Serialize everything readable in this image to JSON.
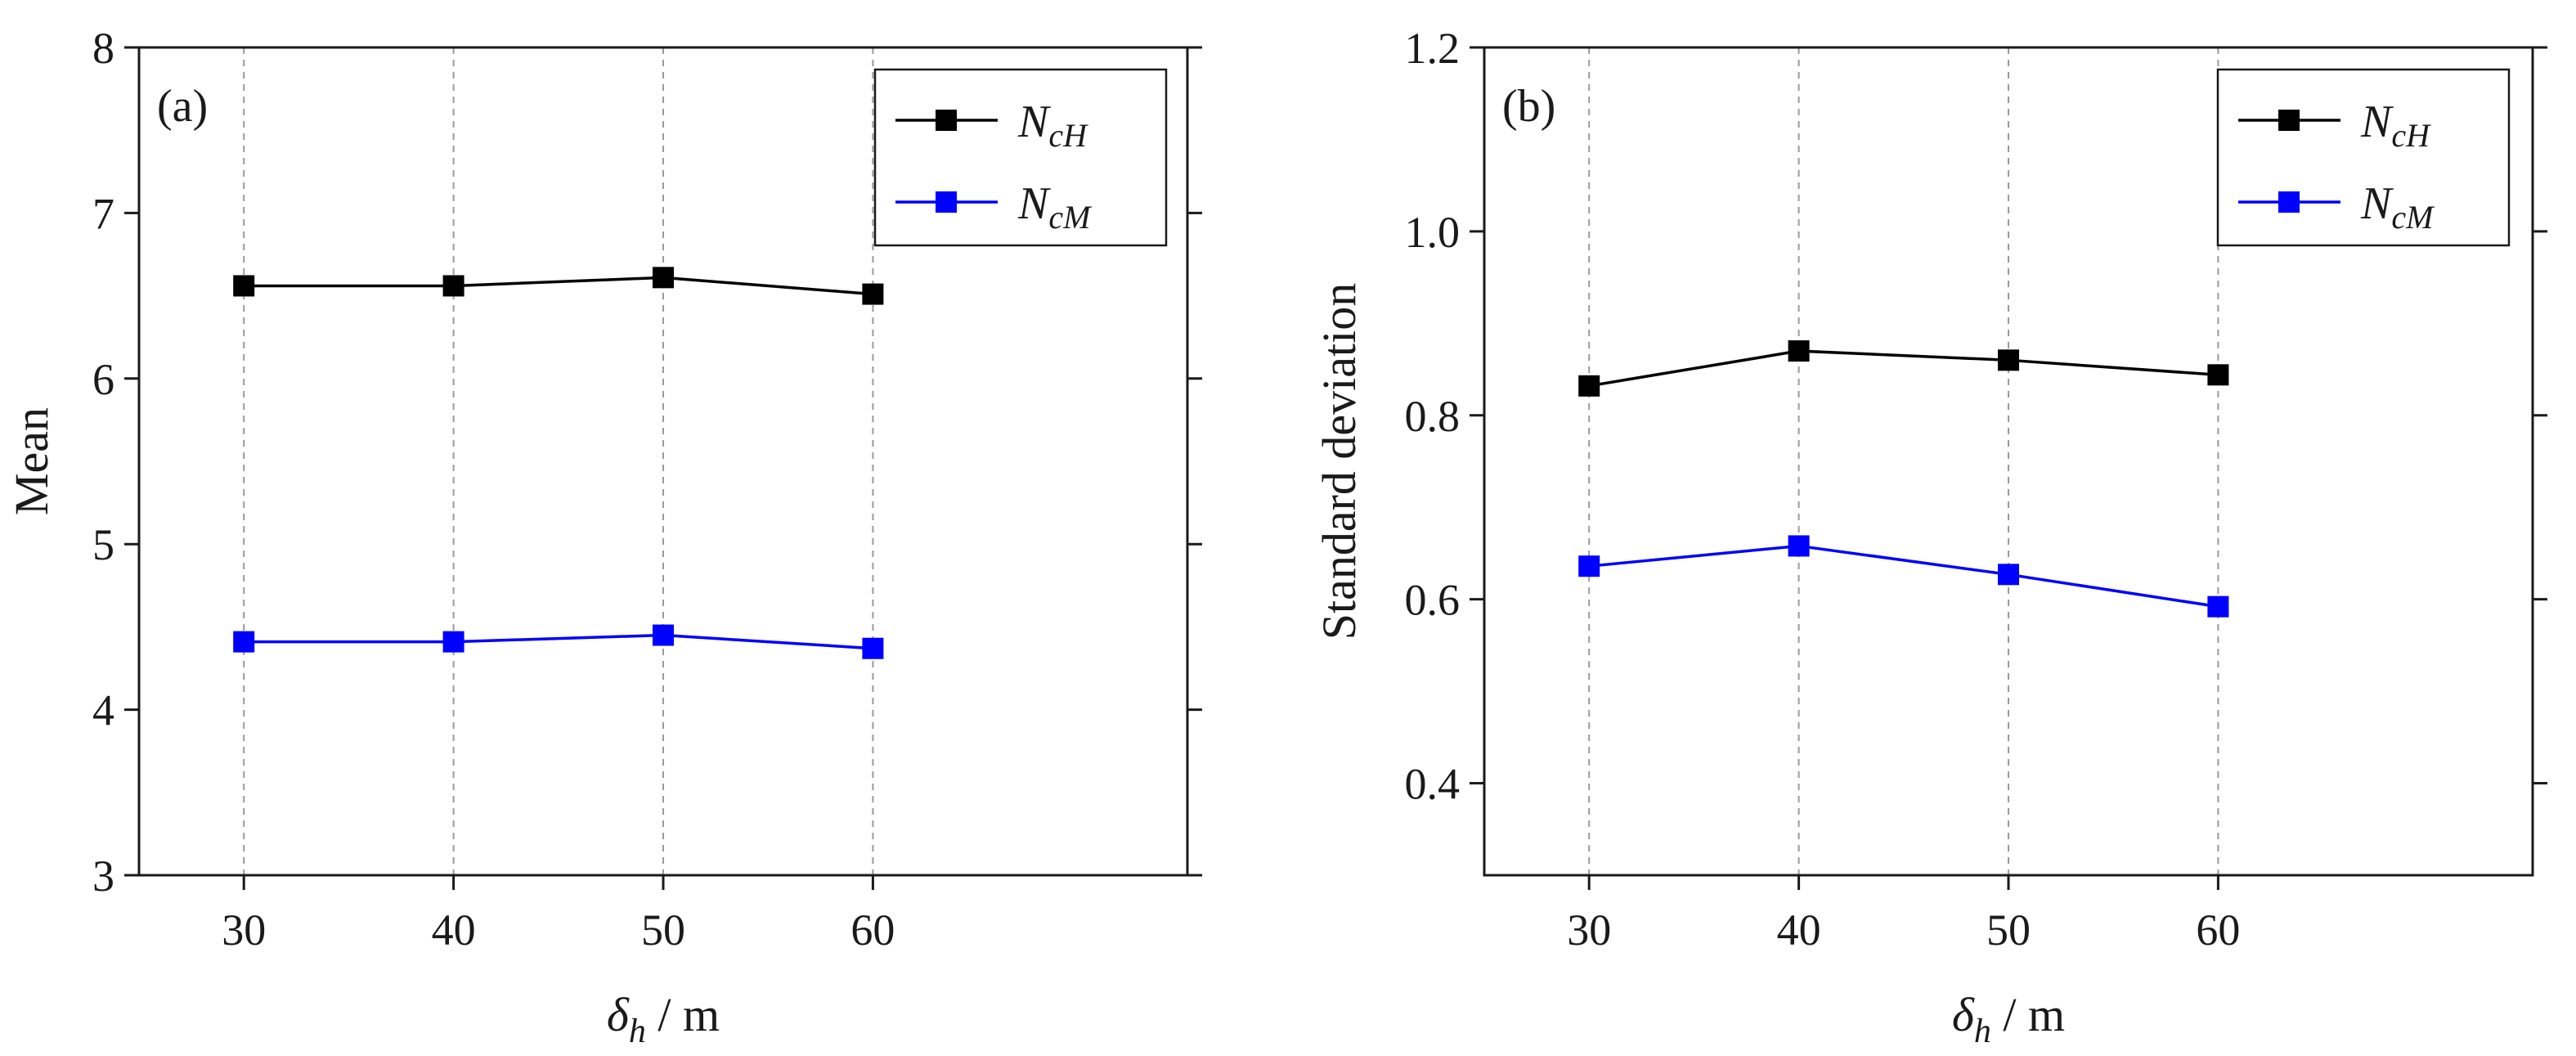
{
  "chart_data": [
    {
      "type": "line",
      "panel_label": "(a)",
      "x": [
        30,
        40,
        50,
        60
      ],
      "xlim": [
        25,
        75
      ],
      "xticks": [
        "30",
        "40",
        "50",
        "60"
      ],
      "xlabel": {
        "symbol": "δ",
        "sub": "h",
        "unit": " / m"
      },
      "ylabel": "Mean",
      "ylim": [
        3,
        8
      ],
      "yticks": [
        "3",
        "4",
        "5",
        "6",
        "7",
        "8"
      ],
      "gridlines": "vertical dashed at x ticks",
      "legend_position": "top-right",
      "series": [
        {
          "name": "N",
          "sub": "cH",
          "color": "#000000",
          "marker": "square",
          "values": [
            6.56,
            6.56,
            6.61,
            6.51
          ]
        },
        {
          "name": "N",
          "sub": "cM",
          "color": "#0000ff",
          "marker": "square",
          "values": [
            4.41,
            4.41,
            4.45,
            4.37
          ]
        }
      ]
    },
    {
      "type": "line",
      "panel_label": "(b)",
      "x": [
        30,
        40,
        50,
        60
      ],
      "xlim": [
        25,
        75
      ],
      "xticks": [
        "30",
        "40",
        "50",
        "60"
      ],
      "xlabel": {
        "symbol": "δ",
        "sub": "h",
        "unit": " / m"
      },
      "ylabel": "Standard deviation",
      "ylim": [
        0.3,
        1.2
      ],
      "yticks": [
        "0.4",
        "0.6",
        "0.8",
        "1.0",
        "1.2"
      ],
      "gridlines": "vertical dashed at x ticks",
      "legend_position": "top-right",
      "series": [
        {
          "name": "N",
          "sub": "cH",
          "color": "#000000",
          "marker": "square",
          "values": [
            0.832,
            0.87,
            0.86,
            0.844
          ]
        },
        {
          "name": "N",
          "sub": "cM",
          "color": "#0000ff",
          "marker": "square",
          "values": [
            0.636,
            0.658,
            0.627,
            0.592
          ]
        }
      ]
    }
  ]
}
